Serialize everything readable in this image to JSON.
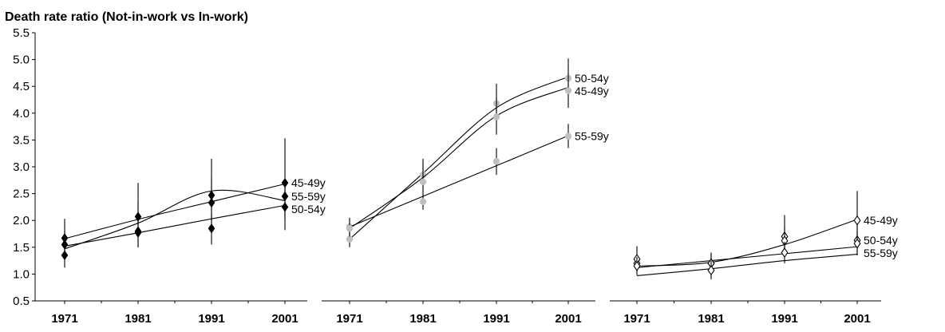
{
  "chart_data": {
    "type": "scatter",
    "title": "Death rate ratio (Not-in-work vs In-work)",
    "ylim": [
      0.5,
      5.5
    ],
    "yticks": [
      "0.5",
      "1.0",
      "1.5",
      "2.0",
      "2.5",
      "3.0",
      "3.5",
      "4.0",
      "4.5",
      "5.0",
      "5.5"
    ],
    "x": [
      "1971",
      "1981",
      "1991",
      "2001"
    ],
    "grid": false,
    "panels": [
      {
        "marker": "diamond-filled",
        "color": "#000000",
        "series": [
          {
            "name": "45-49y",
            "values": [
              1.67,
              1.8,
              2.47,
              2.7
            ],
            "err_low": [
              1.4,
              1.5,
              2.0,
              2.0
            ],
            "err_high": [
              2.03,
              2.7,
              3.15,
              3.53
            ],
            "fit": [
              1.66,
              2.02,
              2.35,
              2.68
            ]
          },
          {
            "name": "55-59y",
            "values": [
              1.55,
              2.07,
              2.33,
              2.45
            ],
            "err_low": [
              1.3,
              1.75,
              1.85,
              2.1
            ],
            "err_high": [
              1.8,
              2.35,
              2.8,
              2.8
            ],
            "fit": [
              1.47,
              1.95,
              2.55,
              2.37
            ]
          },
          {
            "name": "50-54y",
            "values": [
              1.35,
              1.77,
              1.85,
              2.25
            ],
            "err_low": [
              1.12,
              1.5,
              1.55,
              1.82
            ],
            "err_high": [
              1.55,
              2.0,
              2.1,
              2.7
            ],
            "fit": [
              1.52,
              1.77,
              2.03,
              2.28
            ]
          }
        ]
      },
      {
        "marker": "circle-filled",
        "color": "#c0c0c0",
        "series": [
          {
            "name": "50-54y",
            "values": [
              1.65,
              2.85,
              4.18,
              4.65
            ],
            "err_low": [
              1.5,
              2.6,
              3.9,
              4.4
            ],
            "err_high": [
              1.8,
              3.15,
              4.55,
              5.02
            ],
            "fit": [
              1.65,
              2.88,
              4.1,
              4.68
            ]
          },
          {
            "name": "45-49y",
            "values": [
              1.88,
              2.72,
              3.93,
              4.42
            ],
            "err_low": [
              1.7,
              2.45,
              3.6,
              4.1
            ],
            "err_high": [
              2.05,
              3.05,
              4.3,
              4.75
            ],
            "fit": [
              1.85,
              2.8,
              3.95,
              4.48
            ]
          },
          {
            "name": "55-59y",
            "values": [
              1.85,
              2.35,
              3.1,
              3.57
            ],
            "err_low": [
              1.7,
              2.2,
              2.85,
              3.35
            ],
            "err_high": [
              2.0,
              2.5,
              3.35,
              3.8
            ],
            "fit": [
              1.88,
              2.45,
              3.02,
              3.58
            ]
          }
        ]
      },
      {
        "marker": "diamond-open",
        "color": "#000000",
        "series": [
          {
            "name": "45-49y",
            "values": [
              1.2,
              1.2,
              1.7,
              2.0
            ],
            "err_low": [
              1.05,
              0.95,
              1.35,
              1.7
            ],
            "err_high": [
              1.35,
              1.4,
              2.1,
              2.55
            ],
            "fit": [
              1.15,
              1.22,
              1.55,
              2.02
            ]
          },
          {
            "name": "50-54y",
            "values": [
              1.28,
              1.2,
              1.62,
              1.63
            ],
            "err_low": [
              1.1,
              1.0,
              1.35,
              1.35
            ],
            "err_high": [
              1.52,
              1.4,
              1.9,
              1.92
            ],
            "fit": [
              1.12,
              1.25,
              1.38,
              1.51
            ]
          },
          {
            "name": "55-59y",
            "values": [
              1.15,
              1.07,
              1.4,
              1.57
            ],
            "err_low": [
              0.98,
              0.9,
              1.2,
              1.35
            ],
            "err_high": [
              1.32,
              1.25,
              1.6,
              1.8
            ],
            "fit": [
              0.97,
              1.1,
              1.25,
              1.37
            ]
          }
        ]
      }
    ]
  }
}
